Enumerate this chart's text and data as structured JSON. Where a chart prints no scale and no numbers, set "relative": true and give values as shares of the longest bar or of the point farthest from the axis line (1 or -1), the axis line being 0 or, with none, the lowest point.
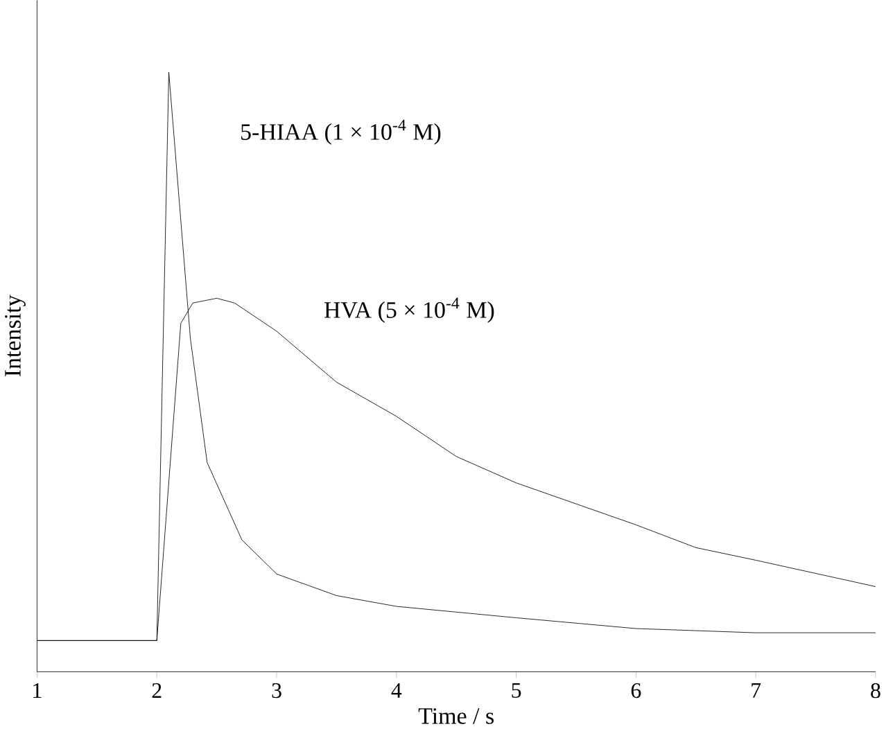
{
  "chart_data": {
    "type": "line",
    "xlabel": "Time / s",
    "ylabel": "Intensity",
    "relative": true,
    "xlim": [
      1,
      8
    ],
    "xticks": [
      1,
      2,
      3,
      4,
      5,
      6,
      7,
      8
    ],
    "marker": "none",
    "line_style": "solid",
    "legend": false,
    "grid": false,
    "series": [
      {
        "name": "5-HIAA (1 × 10$^{-4}$ M)",
        "color": "#000000",
        "x": [
          1,
          2,
          2.1,
          2.28,
          2.42,
          2.71,
          3,
          3.5,
          4,
          5,
          6,
          7,
          8
        ],
        "values": [
          0.052,
          0.052,
          1,
          0.556,
          0.349,
          0.22,
          0.163,
          0.127,
          0.109,
          0.09,
          0.072,
          0.065,
          0.065
        ]
      },
      {
        "name": "HVA (5 × 10$^{-4}$ M)",
        "color": "#000000",
        "x": [
          1,
          2,
          2.2,
          2.3,
          2.5,
          2.65,
          3,
          3.5,
          4,
          4.5,
          5,
          6,
          6.5,
          7,
          8
        ],
        "values": [
          0.052,
          0.052,
          0.581,
          0.615,
          0.623,
          0.615,
          0.568,
          0.483,
          0.426,
          0.359,
          0.315,
          0.245,
          0.207,
          0.186,
          0.142
        ]
      }
    ]
  }
}
